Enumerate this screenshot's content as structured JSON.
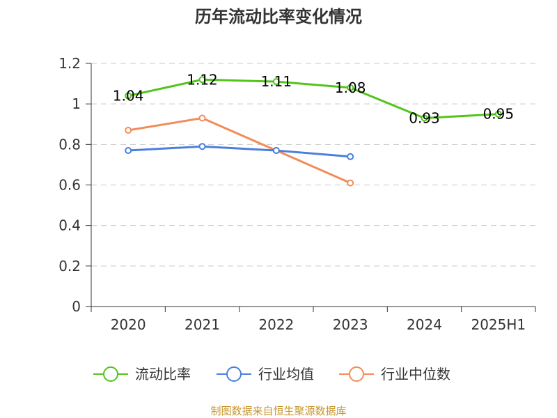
{
  "chart_data": {
    "type": "line",
    "title": "历年流动比率变化情况",
    "categories": [
      "2020",
      "2021",
      "2022",
      "2023",
      "2024",
      "2025H1"
    ],
    "ylim": [
      0,
      1.2
    ],
    "yticks": [
      "0",
      "0.2",
      "0.4",
      "0.6",
      "0.8",
      "1",
      "1.2"
    ],
    "grid": true,
    "legend_position": "bottom",
    "series": [
      {
        "name": "流动比率",
        "color": "#52c41a",
        "values": [
          1.04,
          1.12,
          1.11,
          1.08,
          0.93,
          0.95
        ],
        "labels": [
          "1.04",
          "1.12",
          "1.11",
          "1.08",
          "0.93",
          "0.95"
        ],
        "show_labels": true
      },
      {
        "name": "行业均值",
        "color": "#4a7fdc",
        "values": [
          0.77,
          0.79,
          0.77,
          0.74,
          null,
          null
        ],
        "show_labels": false
      },
      {
        "name": "行业中位数",
        "color": "#f28c5a",
        "values": [
          0.87,
          0.93,
          0.77,
          0.61,
          null,
          null
        ],
        "show_labels": false
      }
    ],
    "source": "制图数据来自恒生聚源数据库"
  }
}
